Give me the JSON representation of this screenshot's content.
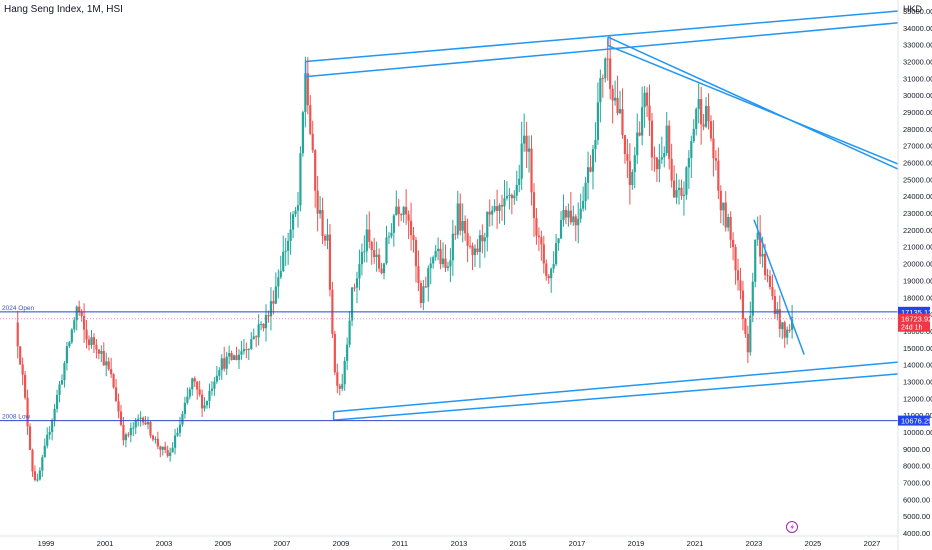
{
  "header": {
    "title": "Hang Seng Index, 1M, HSI",
    "currency": "HKD"
  },
  "colors": {
    "up": "#26a69a",
    "down": "#ef5350",
    "trendline": "#2196f3",
    "hline": "#3344cc",
    "open_line": "#5c6bc0",
    "price_tag": "#2244ee",
    "current_price_tag": "#f23645",
    "lightning": "#9c27b0"
  },
  "chart_data": {
    "type": "candlestick",
    "title": "Hang Seng Index, 1M, HSI",
    "y_unit": "HKD",
    "ylim": [
      4000,
      35500
    ],
    "xlim": [
      1998.0,
      2028.0
    ],
    "grid": false,
    "y_ticks": [
      "35000.00",
      "34000.00",
      "33000.00",
      "32000.00",
      "31000.00",
      "30000.00",
      "29000.00",
      "28000.00",
      "27000.00",
      "26000.00",
      "25000.00",
      "24000.00",
      "23000.00",
      "22000.00",
      "21000.00",
      "20000.00",
      "19000.00",
      "18000.00",
      "17000.00",
      "16000.00",
      "15000.00",
      "14000.00",
      "13000.00",
      "12000.00",
      "11000.00",
      "10000.00",
      "9000.00",
      "8000.00",
      "7000.00",
      "6000.00",
      "5000.00",
      "4000.00"
    ],
    "x_ticks": [
      "1999",
      "2001",
      "2003",
      "2005",
      "2007",
      "2009",
      "2011",
      "2013",
      "2015",
      "2017",
      "2019",
      "2021",
      "2023",
      "2025",
      "2027"
    ],
    "anchors": [
      [
        1998.0,
        16500
      ],
      [
        1998.2,
        14000
      ],
      [
        1998.6,
        7500
      ],
      [
        1998.75,
        7000
      ],
      [
        1999.2,
        10500
      ],
      [
        1999.6,
        13500
      ],
      [
        2000.1,
        17500
      ],
      [
        2000.4,
        15500
      ],
      [
        2000.8,
        15200
      ],
      [
        2001.3,
        13000
      ],
      [
        2001.7,
        9500
      ],
      [
        2002.3,
        11000
      ],
      [
        2002.8,
        9300
      ],
      [
        2003.2,
        8500
      ],
      [
        2003.6,
        10500
      ],
      [
        2004.0,
        13000
      ],
      [
        2004.4,
        11500
      ],
      [
        2004.9,
        14000
      ],
      [
        2005.5,
        14500
      ],
      [
        2006.0,
        15500
      ],
      [
        2006.6,
        17000
      ],
      [
        2007.0,
        20000
      ],
      [
        2007.6,
        23500
      ],
      [
        2007.83,
        31500
      ],
      [
        2008.2,
        23500
      ],
      [
        2008.6,
        21000
      ],
      [
        2008.83,
        13500
      ],
      [
        2009.05,
        12500
      ],
      [
        2009.4,
        18000
      ],
      [
        2009.9,
        21500
      ],
      [
        2010.4,
        19500
      ],
      [
        2010.9,
        23500
      ],
      [
        2011.3,
        23500
      ],
      [
        2011.75,
        17500
      ],
      [
        2012.2,
        21000
      ],
      [
        2012.6,
        19500
      ],
      [
        2013.0,
        23000
      ],
      [
        2013.5,
        20000
      ],
      [
        2014.0,
        22500
      ],
      [
        2014.5,
        23000
      ],
      [
        2015.0,
        24500
      ],
      [
        2015.3,
        28000
      ],
      [
        2015.7,
        21500
      ],
      [
        2016.1,
        19000
      ],
      [
        2016.6,
        23500
      ],
      [
        2017.0,
        22500
      ],
      [
        2017.5,
        26000
      ],
      [
        2018.0,
        32500
      ],
      [
        2018.5,
        28500
      ],
      [
        2018.83,
        24500
      ],
      [
        2019.3,
        30000
      ],
      [
        2019.7,
        25500
      ],
      [
        2020.1,
        27500
      ],
      [
        2020.3,
        23500
      ],
      [
        2020.7,
        24500
      ],
      [
        2021.1,
        29500
      ],
      [
        2021.5,
        28500
      ],
      [
        2021.9,
        23500
      ],
      [
        2022.3,
        21500
      ],
      [
        2022.83,
        15000
      ],
      [
        2023.1,
        22000
      ],
      [
        2023.5,
        19000
      ],
      [
        2023.83,
        17000
      ],
      [
        2024.1,
        15500
      ],
      [
        2024.3,
        16700
      ]
    ],
    "trendlines": [
      {
        "from": [
          2007.8,
          32000
        ],
        "to": [
          2027.9,
          35000
        ]
      },
      {
        "from": [
          2007.8,
          31100
        ],
        "to": [
          2027.9,
          34300
        ]
      },
      {
        "from": [
          2007.8,
          32000
        ],
        "to": [
          2007.8,
          31100
        ]
      },
      {
        "from": [
          2018.05,
          33450
        ],
        "to": [
          2027.9,
          25600
        ]
      },
      {
        "from": [
          2018.05,
          32950
        ],
        "to": [
          2027.9,
          25900
        ]
      },
      {
        "from": [
          2018.05,
          33450
        ],
        "to": [
          2018.05,
          32950
        ]
      },
      {
        "from": [
          2008.75,
          11200
        ],
        "to": [
          2027.9,
          14150
        ]
      },
      {
        "from": [
          2008.75,
          10700
        ],
        "to": [
          2027.9,
          13450
        ]
      },
      {
        "from": [
          2008.75,
          11200
        ],
        "to": [
          2008.75,
          10700
        ]
      },
      {
        "from": [
          2023.0,
          22600
        ],
        "to": [
          2024.7,
          14600
        ]
      }
    ],
    "horizontal_lines": [
      {
        "label": "2024 Open",
        "value": 17135.12,
        "tag": "17135.12"
      },
      {
        "label": "2008 Low",
        "value": 10676.29,
        "tag": "10676.29"
      }
    ],
    "current_price": {
      "value": 16723.92,
      "tag": "16723.92",
      "countdown": "24d 1h"
    }
  }
}
